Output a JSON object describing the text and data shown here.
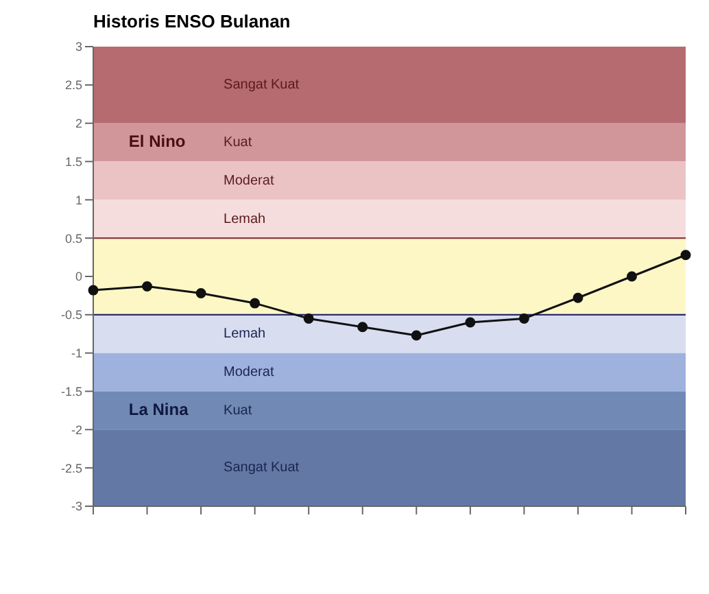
{
  "chart_data": {
    "type": "line",
    "title": "Historis ENSO Bulanan",
    "categories": [
      null,
      null,
      null,
      null,
      null,
      null,
      null,
      null,
      null,
      null,
      null,
      null
    ],
    "series": [
      {
        "color": "#111111",
        "values": [
          -0.18,
          -0.13,
          -0.22,
          -0.35,
          -0.55,
          -0.66,
          -0.77,
          -0.6,
          -0.55,
          -0.28,
          0.0,
          0.28
        ]
      }
    ],
    "ylim": [
      -3,
      3
    ],
    "yticks": [
      -3,
      -2.5,
      -2,
      -1.5,
      -1,
      -0.5,
      0,
      0.5,
      1,
      1.5,
      2,
      2.5,
      3
    ],
    "marker": "circle",
    "line_style": "solid",
    "bands": [
      {
        "axis": "y",
        "from": 2,
        "to": 3,
        "label": "Sangat Kuat",
        "color": "#b56b70"
      },
      {
        "axis": "y",
        "from": 1.5,
        "to": 2,
        "label": "Kuat",
        "color": "#d0969a"
      },
      {
        "axis": "y",
        "from": 1,
        "to": 1.5,
        "label": "Moderat",
        "color": "#ebc3c5"
      },
      {
        "axis": "y",
        "from": 0.5,
        "to": 1,
        "label": "Lemah",
        "color": "#f5dcdd"
      },
      {
        "axis": "y",
        "from": -0.5,
        "to": 0.5,
        "label": null,
        "color": "#fdf7c6"
      },
      {
        "axis": "y",
        "from": -1,
        "to": -0.5,
        "label": "Lemah",
        "color": "#d8def0"
      },
      {
        "axis": "y",
        "from": -1.5,
        "to": -1,
        "label": "Moderat",
        "color": "#9fb2dd"
      },
      {
        "axis": "y",
        "from": -2,
        "to": -1.5,
        "label": "Kuat",
        "color": "#7189b5"
      },
      {
        "axis": "y",
        "from": -3,
        "to": -2,
        "label": "Sangat Kuat",
        "color": "#6478a6"
      }
    ],
    "ref_lines": [
      {
        "axis": "y",
        "value": 0.5,
        "label": null,
        "color": "#8a3a40"
      },
      {
        "axis": "y",
        "value": -0.5,
        "label": null,
        "color": "#2a2a70"
      }
    ],
    "annotations": [
      "El Nino",
      "La Nina"
    ]
  }
}
